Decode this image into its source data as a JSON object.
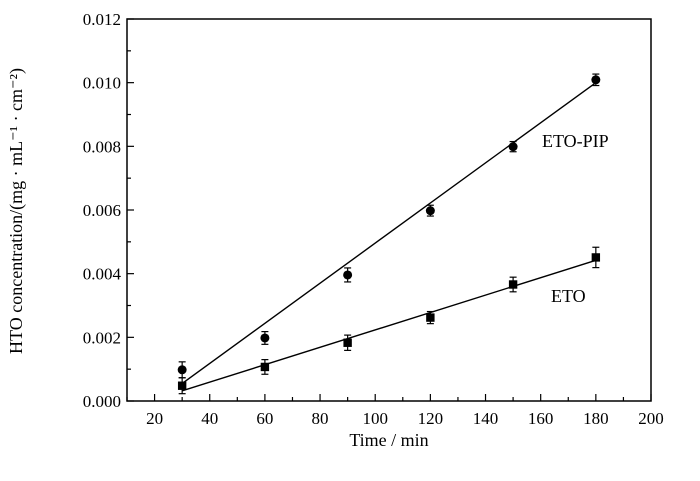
{
  "chart_data": {
    "type": "scatter",
    "xlabel": "Time / min",
    "ylabel": "HTO concentration/(mg · mL⁻¹ · cm⁻²)",
    "xlim": [
      10,
      200
    ],
    "ylim": [
      0.0,
      0.012
    ],
    "xticks": [
      "20",
      "40",
      "60",
      "80",
      "100",
      "120",
      "140",
      "160",
      "180",
      "200"
    ],
    "yticks": [
      "0.000",
      "0.002",
      "0.004",
      "0.006",
      "0.008",
      "0.010",
      "0.012"
    ],
    "series": [
      {
        "name": "ETO-PIP",
        "marker": "circle",
        "x": [
          30,
          60,
          90,
          120,
          150,
          180
        ],
        "y": [
          0.00098,
          0.00198,
          0.00396,
          0.00598,
          0.00799,
          0.01009
        ],
        "error": [
          0.00025,
          0.0002,
          0.00022,
          0.00017,
          0.00016,
          0.00018
        ],
        "fit_line": {
          "x": [
            30,
            180
          ],
          "y": [
            0.00055,
            0.01
          ]
        }
      },
      {
        "name": "ETO",
        "marker": "square",
        "x": [
          30,
          60,
          90,
          120,
          150,
          180
        ],
        "y": [
          0.00048,
          0.00107,
          0.00183,
          0.00262,
          0.00366,
          0.00451
        ],
        "error": [
          0.00025,
          0.00023,
          0.00024,
          0.00019,
          0.00023,
          0.00032
        ],
        "fit_line": {
          "x": [
            30,
            180
          ],
          "y": [
            0.00032,
            0.00442
          ]
        }
      }
    ],
    "grid": false,
    "legend": "inline labels"
  }
}
